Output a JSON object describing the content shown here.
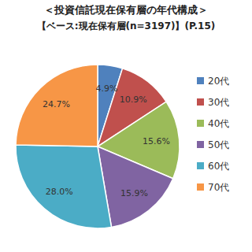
{
  "chart_data": {
    "type": "pie",
    "title": "＜投資信託現在保有層の年代構成＞",
    "subtitle": "【ベース:現在保有層(n=3197)】(P.15)",
    "categories": [
      "20代",
      "30代",
      "40代",
      "50代",
      "60代",
      "70代"
    ],
    "values": [
      4.9,
      10.9,
      15.6,
      15.9,
      28.0,
      24.7
    ],
    "value_labels": [
      "4.9%",
      "10.9%",
      "15.6%",
      "15.9%",
      "28.0%",
      "24.7%"
    ],
    "colors": [
      "#4f81bd",
      "#c0504d",
      "#9bbb59",
      "#8064a2",
      "#4bacc6",
      "#f79646"
    ],
    "legend": "right",
    "data_labels": true
  }
}
